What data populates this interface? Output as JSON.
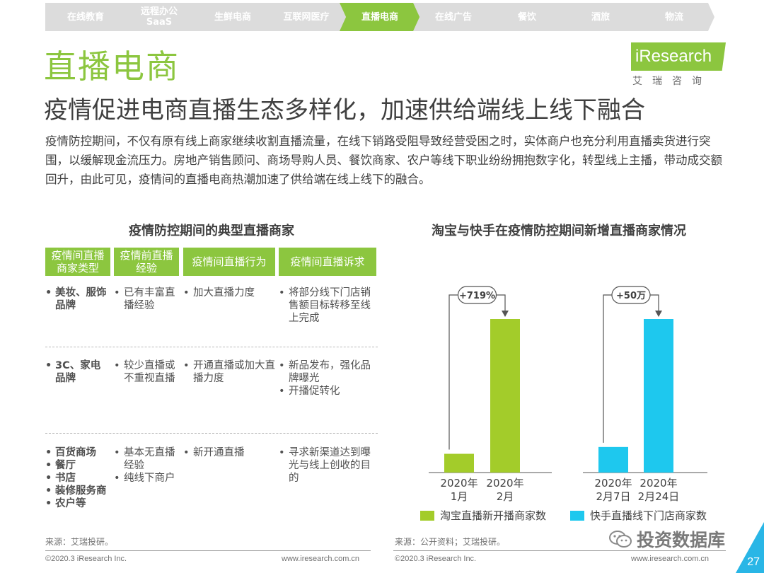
{
  "nav": {
    "items": [
      {
        "label": "在线教育",
        "active": false
      },
      {
        "label": "远程办公\nSaaS",
        "active": false
      },
      {
        "label": "生鲜电商",
        "active": false
      },
      {
        "label": "互联网医疗",
        "active": false
      },
      {
        "label": "直播电商",
        "active": true
      },
      {
        "label": "在线广告",
        "active": false
      },
      {
        "label": "餐饮",
        "active": false
      },
      {
        "label": "酒旅",
        "active": false
      },
      {
        "label": "物流",
        "active": false
      }
    ]
  },
  "header": {
    "section_title": "直播电商",
    "subtitle": "疫情促进电商直播生态多样化，加速供给端线上线下融合",
    "paragraph": "疫情防控期间，不仅有原有线上商家继续收割直播流量，在线下销路受阻导致经营受困之时，实体商户也充分利用直播卖货进行突围，以缓解现金流压力。房地产销售顾问、商场导购人员、餐饮商家、农户等线下职业纷纷拥抱数字化，转型线上主播，带动成交额回升，由此可见，疫情间的直播电商热潮加速了供给端在线上线下的融合。"
  },
  "logo": {
    "text": "iResearch",
    "sub": "艾瑞咨询"
  },
  "table": {
    "title": "疫情防控期间的典型直播商家",
    "headers": [
      "疫情间直播\n商家类型",
      "疫情前直播\n经验",
      "疫情间直播行为",
      "疫情间直播诉求"
    ],
    "rows": [
      {
        "type": [
          "美妆、服饰品牌"
        ],
        "experience": [
          "已有丰富直播经验"
        ],
        "behavior": [
          "加大直播力度"
        ],
        "demand": [
          "将部分线下门店销售额目标转移至线上完成"
        ]
      },
      {
        "type": [
          "3C、家电品牌"
        ],
        "experience": [
          "较少直播或不重视直播"
        ],
        "behavior": [
          "开通直播或加大直播力度"
        ],
        "demand": [
          "新品发布，强化品牌曝光",
          "开播促转化"
        ]
      },
      {
        "type": [
          "百货商场",
          "餐厅",
          "书店",
          "装修服务商",
          "农户等"
        ],
        "experience": [
          "基本无直播经验",
          "纯线下商户"
        ],
        "behavior": [
          "新开通直播"
        ],
        "demand": [
          "寻求新渠道达到曝光与线上创收的目的"
        ]
      }
    ],
    "source": "来源：艾瑞投研。",
    "footer_left": "©2020.3 iResearch Inc.",
    "footer_right": "www.iresearch.com.cn"
  },
  "chart_data": {
    "type": "bar",
    "title": "淘宝与快手在疫情防控期间新增直播商家情况",
    "groups": [
      {
        "series_name": "淘宝直播新开播商家数",
        "color": "#a3cc2a",
        "categories": [
          "2020年\n1月",
          "2020年\n2月"
        ],
        "values": [
          1,
          8.19
        ],
        "annotation": "+719%"
      },
      {
        "series_name": "快手直播线下门店商家数",
        "color": "#1ec8ee",
        "categories": [
          "2020年\n2月7日",
          "2020年\n2月24日"
        ],
        "values": [
          1,
          6
        ],
        "annotation": "+50万"
      }
    ],
    "legend": [
      "淘宝直播新开播商家数",
      "快手直播线下门店商家数"
    ]
  },
  "right_source": "来源：公开资料；艾瑞投研。",
  "right_footer_left": "©2020.3 iResearch Inc.",
  "right_footer_right": "www.iresearch.com.cn",
  "watermark": "投资数据库",
  "page_number": "27"
}
